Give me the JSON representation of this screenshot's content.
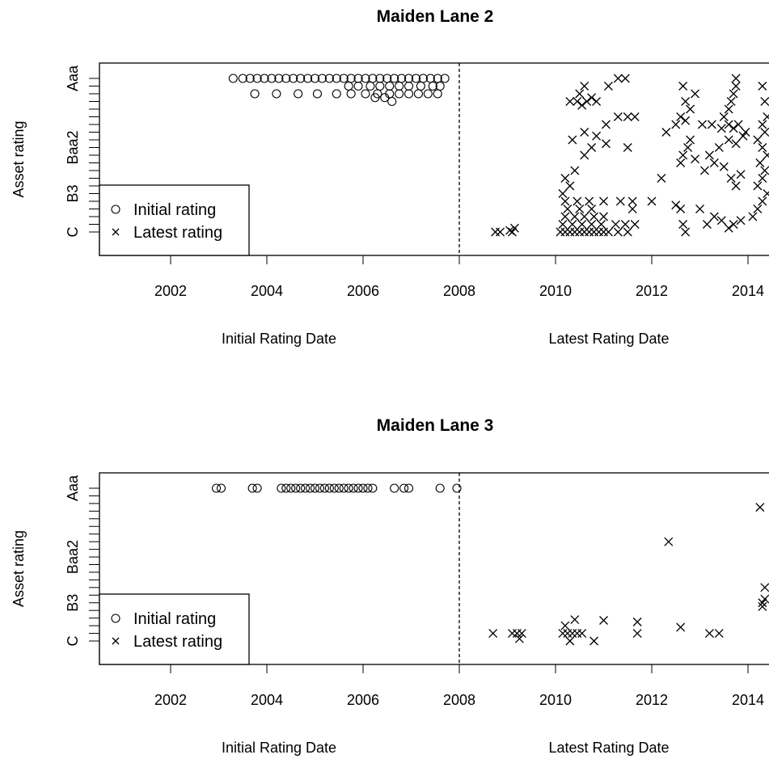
{
  "chart_data": [
    {
      "type": "scatter",
      "title": "Maiden Lane 2",
      "ylabel": "Asset rating",
      "xlabel_left": "Initial Rating Date",
      "xlabel_right": "Latest Rating Date",
      "x_ticks": [
        "2002",
        "2004",
        "2006",
        "2008",
        "2010",
        "2012",
        "2014"
      ],
      "y_tick_labels": [
        "Aaa",
        "Baa2",
        "B3",
        "C"
      ],
      "y_tick_levels": [
        21,
        12,
        6,
        1
      ],
      "y_range": [
        1,
        21
      ],
      "vertical_line_x": 2008,
      "legend": {
        "position": "bottom-left",
        "entries": [
          "Initial rating",
          "Latest rating"
        ]
      },
      "series": [
        {
          "name": "Initial rating",
          "marker": "circle",
          "points": [
            [
              2003.3,
              21
            ],
            [
              2003.5,
              21
            ],
            [
              2003.65,
              21
            ],
            [
              2003.8,
              21
            ],
            [
              2003.95,
              21
            ],
            [
              2004.1,
              21
            ],
            [
              2004.25,
              21
            ],
            [
              2004.4,
              21
            ],
            [
              2004.55,
              21
            ],
            [
              2004.7,
              21
            ],
            [
              2004.85,
              21
            ],
            [
              2005.0,
              21
            ],
            [
              2005.15,
              21
            ],
            [
              2005.3,
              21
            ],
            [
              2005.45,
              21
            ],
            [
              2005.6,
              21
            ],
            [
              2005.75,
              21
            ],
            [
              2005.9,
              21
            ],
            [
              2006.05,
              21
            ],
            [
              2006.2,
              21
            ],
            [
              2006.35,
              21
            ],
            [
              2006.5,
              21
            ],
            [
              2006.65,
              21
            ],
            [
              2006.8,
              21
            ],
            [
              2006.95,
              21
            ],
            [
              2007.1,
              21
            ],
            [
              2007.25,
              21
            ],
            [
              2007.4,
              21
            ],
            [
              2007.55,
              21
            ],
            [
              2007.7,
              21
            ],
            [
              2005.7,
              20
            ],
            [
              2005.9,
              20
            ],
            [
              2006.15,
              20
            ],
            [
              2006.35,
              20
            ],
            [
              2006.55,
              20
            ],
            [
              2006.75,
              20
            ],
            [
              2006.95,
              20
            ],
            [
              2007.2,
              20
            ],
            [
              2007.45,
              20
            ],
            [
              2007.6,
              20
            ],
            [
              2003.75,
              19
            ],
            [
              2004.2,
              19
            ],
            [
              2004.65,
              19
            ],
            [
              2005.05,
              19
            ],
            [
              2005.45,
              19
            ],
            [
              2005.75,
              19
            ],
            [
              2006.05,
              19
            ],
            [
              2006.3,
              19
            ],
            [
              2006.55,
              19
            ],
            [
              2006.75,
              19
            ],
            [
              2006.95,
              19
            ],
            [
              2007.15,
              19
            ],
            [
              2007.35,
              19
            ],
            [
              2007.55,
              19
            ],
            [
              2006.25,
              18.5
            ],
            [
              2006.45,
              18.5
            ],
            [
              2006.6,
              18
            ]
          ]
        },
        {
          "name": "Latest rating",
          "marker": "x",
          "points": [
            [
              2008.75,
              1
            ],
            [
              2008.85,
              1
            ],
            [
              2009.1,
              1
            ],
            [
              2009.15,
              1.5
            ],
            [
              2009.05,
              1.2
            ],
            [
              2010.1,
              1
            ],
            [
              2010.2,
              1
            ],
            [
              2010.3,
              1
            ],
            [
              2010.4,
              1
            ],
            [
              2010.5,
              1
            ],
            [
              2010.6,
              1
            ],
            [
              2010.7,
              1
            ],
            [
              2010.8,
              1
            ],
            [
              2010.9,
              1
            ],
            [
              2011.0,
              1
            ],
            [
              2011.1,
              1
            ],
            [
              2011.3,
              1
            ],
            [
              2011.5,
              1
            ],
            [
              2010.15,
              2
            ],
            [
              2010.35,
              2
            ],
            [
              2010.55,
              2
            ],
            [
              2010.75,
              2
            ],
            [
              2010.95,
              2
            ],
            [
              2011.25,
              2
            ],
            [
              2011.45,
              2
            ],
            [
              2011.65,
              2
            ],
            [
              2010.2,
              3
            ],
            [
              2010.4,
              3
            ],
            [
              2010.6,
              3
            ],
            [
              2010.8,
              3
            ],
            [
              2011.0,
              3
            ],
            [
              2010.25,
              4
            ],
            [
              2010.5,
              4
            ],
            [
              2010.75,
              4
            ],
            [
              2011.6,
              4
            ],
            [
              2010.2,
              5
            ],
            [
              2010.45,
              5
            ],
            [
              2010.7,
              5
            ],
            [
              2011.0,
              5
            ],
            [
              2011.35,
              5
            ],
            [
              2011.6,
              5
            ],
            [
              2010.15,
              6
            ],
            [
              2010.3,
              7
            ],
            [
              2010.2,
              8
            ],
            [
              2010.4,
              9
            ],
            [
              2010.6,
              11
            ],
            [
              2010.75,
              12
            ],
            [
              2011.05,
              12.5
            ],
            [
              2011.5,
              12
            ],
            [
              2010.35,
              13
            ],
            [
              2010.6,
              14
            ],
            [
              2010.85,
              13.5
            ],
            [
              2011.05,
              15
            ],
            [
              2011.3,
              16
            ],
            [
              2011.5,
              16
            ],
            [
              2011.65,
              16
            ],
            [
              2010.3,
              18
            ],
            [
              2010.45,
              18
            ],
            [
              2010.55,
              17.5
            ],
            [
              2010.65,
              18
            ],
            [
              2010.75,
              18.5
            ],
            [
              2010.85,
              18
            ],
            [
              2010.5,
              19
            ],
            [
              2010.6,
              20
            ],
            [
              2011.1,
              20
            ],
            [
              2011.3,
              21
            ],
            [
              2011.45,
              21
            ],
            [
              2012.0,
              5
            ],
            [
              2012.2,
              8
            ],
            [
              2012.5,
              4.5
            ],
            [
              2012.6,
              4
            ],
            [
              2012.65,
              2
            ],
            [
              2012.7,
              1
            ],
            [
              2012.6,
              10
            ],
            [
              2012.65,
              11
            ],
            [
              2012.75,
              12
            ],
            [
              2012.8,
              13
            ],
            [
              2012.9,
              10.5
            ],
            [
              2012.3,
              14
            ],
            [
              2012.5,
              15
            ],
            [
              2012.6,
              16
            ],
            [
              2012.7,
              15.5
            ],
            [
              2012.8,
              17
            ],
            [
              2012.7,
              18
            ],
            [
              2012.9,
              19
            ],
            [
              2012.65,
              20
            ],
            [
              2013.0,
              4
            ],
            [
              2013.15,
              2
            ],
            [
              2013.3,
              3
            ],
            [
              2013.45,
              2.5
            ],
            [
              2013.6,
              1.5
            ],
            [
              2013.7,
              2
            ],
            [
              2013.85,
              2.5
            ],
            [
              2013.1,
              9
            ],
            [
              2013.3,
              10
            ],
            [
              2013.5,
              9.5
            ],
            [
              2013.65,
              8
            ],
            [
              2013.75,
              7
            ],
            [
              2013.85,
              8.5
            ],
            [
              2013.2,
              11
            ],
            [
              2013.4,
              12
            ],
            [
              2013.6,
              13
            ],
            [
              2013.75,
              12.5
            ],
            [
              2013.9,
              13.5
            ],
            [
              2013.05,
              15
            ],
            [
              2013.25,
              15
            ],
            [
              2013.45,
              14.5
            ],
            [
              2013.6,
              15
            ],
            [
              2013.7,
              14.5
            ],
            [
              2013.8,
              15
            ],
            [
              2013.95,
              14
            ],
            [
              2013.5,
              16
            ],
            [
              2013.6,
              17
            ],
            [
              2013.65,
              18
            ],
            [
              2013.7,
              19
            ],
            [
              2013.75,
              20
            ],
            [
              2013.75,
              21
            ],
            [
              2014.1,
              3
            ],
            [
              2014.2,
              4
            ],
            [
              2014.3,
              5
            ],
            [
              2014.4,
              6
            ],
            [
              2014.2,
              7
            ],
            [
              2014.3,
              8
            ],
            [
              2014.35,
              9
            ],
            [
              2014.25,
              10
            ],
            [
              2014.4,
              11
            ],
            [
              2014.3,
              12
            ],
            [
              2014.2,
              13
            ],
            [
              2014.35,
              14
            ],
            [
              2014.3,
              15
            ],
            [
              2014.4,
              16
            ],
            [
              2014.35,
              18
            ],
            [
              2014.3,
              20
            ]
          ]
        }
      ]
    },
    {
      "type": "scatter",
      "title": "Maiden Lane 3",
      "ylabel": "Asset rating",
      "xlabel_left": "Initial Rating Date",
      "xlabel_right": "Latest Rating Date",
      "x_ticks": [
        "2002",
        "2004",
        "2006",
        "2008",
        "2010",
        "2012",
        "2014"
      ],
      "y_tick_labels": [
        "Aaa",
        "Baa2",
        "B3",
        "C"
      ],
      "y_tick_levels": [
        21,
        12,
        6,
        1
      ],
      "y_range": [
        1,
        21
      ],
      "vertical_line_x": 2008,
      "legend": {
        "position": "bottom-left",
        "entries": [
          "Initial rating",
          "Latest rating"
        ]
      },
      "series": [
        {
          "name": "Initial rating",
          "marker": "circle",
          "points": [
            [
              2002.95,
              21
            ],
            [
              2003.05,
              21
            ],
            [
              2003.7,
              21
            ],
            [
              2003.8,
              21
            ],
            [
              2004.3,
              21
            ],
            [
              2004.4,
              21
            ],
            [
              2004.5,
              21
            ],
            [
              2004.6,
              21
            ],
            [
              2004.7,
              21
            ],
            [
              2004.8,
              21
            ],
            [
              2004.9,
              21
            ],
            [
              2005.0,
              21
            ],
            [
              2005.1,
              21
            ],
            [
              2005.2,
              21
            ],
            [
              2005.3,
              21
            ],
            [
              2005.4,
              21
            ],
            [
              2005.5,
              21
            ],
            [
              2005.6,
              21
            ],
            [
              2005.7,
              21
            ],
            [
              2005.8,
              21
            ],
            [
              2005.9,
              21
            ],
            [
              2006.0,
              21
            ],
            [
              2006.1,
              21
            ],
            [
              2006.2,
              21
            ],
            [
              2006.65,
              21
            ],
            [
              2006.85,
              21
            ],
            [
              2006.95,
              21
            ],
            [
              2007.6,
              21
            ],
            [
              2007.95,
              21
            ]
          ]
        },
        {
          "name": "Latest rating",
          "marker": "x",
          "points": [
            [
              2008.7,
              2
            ],
            [
              2009.1,
              2
            ],
            [
              2009.2,
              2
            ],
            [
              2009.3,
              2
            ],
            [
              2009.25,
              1.3
            ],
            [
              2010.15,
              2
            ],
            [
              2010.25,
              2
            ],
            [
              2010.35,
              2
            ],
            [
              2010.45,
              2
            ],
            [
              2010.55,
              2
            ],
            [
              2010.2,
              3
            ],
            [
              2010.3,
              1
            ],
            [
              2010.4,
              3.8
            ],
            [
              2010.8,
              1
            ],
            [
              2011.0,
              3.7
            ],
            [
              2011.7,
              2
            ],
            [
              2011.7,
              3.5
            ],
            [
              2012.6,
              2.8
            ],
            [
              2013.2,
              2
            ],
            [
              2013.4,
              2
            ],
            [
              2012.35,
              14
            ],
            [
              2014.25,
              18.5
            ],
            [
              2014.3,
              6
            ],
            [
              2014.35,
              6.5
            ],
            [
              2014.3,
              5.5
            ],
            [
              2014.35,
              8
            ]
          ]
        }
      ]
    }
  ]
}
